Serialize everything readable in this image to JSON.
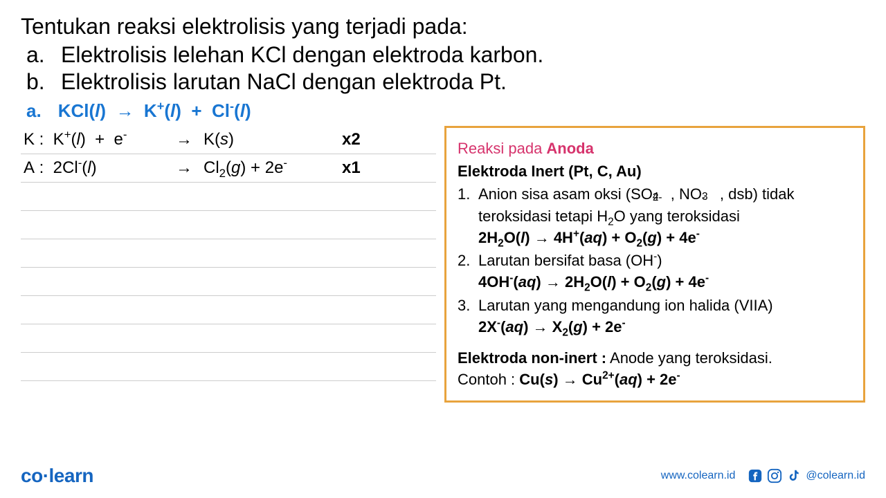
{
  "question": {
    "title": "Tentukan reaksi elektrolisis yang terjadi pada:",
    "items": [
      {
        "label": "a.",
        "text": "Elektrolisis lelehan KCl dengan elektroda karbon."
      },
      {
        "label": "b.",
        "text": "Elektrolisis larutan NaCl dengan elektroda Pt."
      }
    ]
  },
  "answer": {
    "label": "a.",
    "equation_html": "KCl(<span class='italic'>l</span>)&nbsp;&nbsp;→&nbsp;&nbsp;K<sup>+</sup>(<span class='italic'>l</span>)&nbsp;&nbsp;+&nbsp;&nbsp;Cl<sup>-</sup>(<span class='italic'>l</span>)"
  },
  "work_rows": [
    {
      "lhs_html": "K&nbsp;:&nbsp;&nbsp;K<sup>+</sup>(<span class='italic'>l</span>)&nbsp;&nbsp;+&nbsp;&nbsp;e<sup>-</sup>",
      "arrow": "→",
      "rhs_html": "K(<span class='italic'>s</span>)",
      "mult": "x2"
    },
    {
      "lhs_html": "A&nbsp;:&nbsp;&nbsp;2Cl<sup>-</sup>(<span class='italic'>l</span>)",
      "arrow": "→",
      "rhs_html": "Cl<sub>2</sub>(<span class='italic'>g</span>)&nbsp;+&nbsp;2e<sup>-</sup>",
      "mult": "x1"
    }
  ],
  "blank_rows": 7,
  "info_box": {
    "title_prefix": "Reaksi pada ",
    "title_bold": "Anoda",
    "subtitle": "Elektroda Inert (Pt, C, Au)",
    "items": [
      {
        "num": "1.",
        "text_html": "Anion sisa asam oksi (SO<span class='supsub'><span class='sp'>2-</span><span class='sb'>4</span></span>&nbsp;, NO<span class='supsub'><span class='sp'>-</span><span class='sb'>3</span></span>&nbsp;, dsb) tidak teroksidasi tetapi H<sub>2</sub>O yang teroksidasi",
        "eq_html": "2H<sub>2</sub>O(<span class='italic'>l</span>) → 4H<sup>+</sup>(<span class='italic'>aq</span>) + O<sub>2</sub>(<span class='italic'>g</span>) + 4e<sup>-</sup>"
      },
      {
        "num": "2.",
        "text_html": "Larutan bersifat basa (OH<sup>-</sup>)",
        "eq_html": "4OH<sup>-</sup>(<span class='italic'>aq</span>) → 2H<sub>2</sub>O(<span class='italic'>l</span>) + O<sub>2</sub>(<span class='italic'>g</span>) + 4e<sup>-</sup>"
      },
      {
        "num": "3.",
        "text_html": "Larutan yang mengandung ion halida (VIIA)",
        "eq_html": "2X<sup>-</sup>(<span class='italic'>aq</span>) → X<sub>2</sub>(<span class='italic'>g</span>) + 2e<sup>-</sup>"
      }
    ],
    "bottom_label": "Elektroda non-inert :",
    "bottom_text": " Anode yang teroksidasi.",
    "bottom_example_label": "Contoh : ",
    "bottom_example_html": "Cu(<span class='italic'>s</span>) → Cu<sup>2+</sup>(<span class='italic'>aq</span>) + 2e<sup>-</sup>"
  },
  "footer": {
    "logo_html": "co<span class='dot'>·</span>learn",
    "website": "www.colearn.id",
    "handle": "@colearn.id"
  },
  "colors": {
    "brand_blue": "#1565c0",
    "box_border": "#e8a33d",
    "title_pink": "#d6336c",
    "answer_blue": "#1976d2",
    "line_gray": "#cccccc"
  }
}
